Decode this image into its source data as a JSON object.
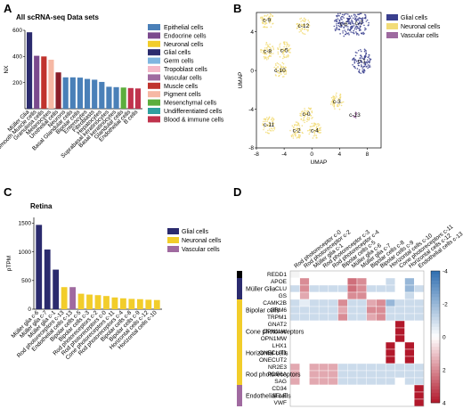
{
  "panels": {
    "a": "A",
    "b": "B",
    "c": "C",
    "d": "D"
  },
  "chart_data": [
    {
      "type": "bar",
      "title": "All scRNA-seq Data sets",
      "ylabel": "NX",
      "ylim": [
        0,
        600
      ],
      "yticks": [
        200,
        400,
        600
      ],
      "categories": [
        "Müller Glia",
        "Smooth Muscle cells",
        "Granulosa cells",
        "Melanocytes",
        "Urothelial cells",
        "Neurons",
        "Basal Glandular cells",
        "Bipolar cells",
        "Enterocytes",
        "Fibroblasts",
        "Hepatocytes",
        "Suprabasal keratinocytes",
        "Basal keratinocytes",
        "Glandular cells",
        "Endothelial cells",
        "B cells"
      ],
      "values": [
        585,
        405,
        400,
        375,
        278,
        240,
        240,
        238,
        228,
        222,
        205,
        168,
        165,
        162,
        158,
        155
      ],
      "colors": [
        "#2b2b6e",
        "#7b4a8e",
        "#c0332d",
        "#f6b8a4",
        "#8a1f2a",
        "#4a80b8",
        "#4a80b8",
        "#4a80b8",
        "#4a80b8",
        "#4a80b8",
        "#4a80b8",
        "#4a80b8",
        "#4a80b8",
        "#5cae3d",
        "#c0334d",
        "#c0334d"
      ],
      "legend": [
        {
          "label": "Epithelial cells",
          "color": "#4a80b8"
        },
        {
          "label": "Endocrine cells",
          "color": "#7b4a8e"
        },
        {
          "label": "Neuronal cells",
          "color": "#f2cd2a"
        },
        {
          "label": "Glial cells",
          "color": "#2b2b6e"
        },
        {
          "label": "Germ cells",
          "color": "#7fb6e0"
        },
        {
          "label": "Tropoblast cells",
          "color": "#f4b8c8"
        },
        {
          "label": "Vascular cells",
          "color": "#a06aa0"
        },
        {
          "label": "Muscle cells",
          "color": "#c0332d"
        },
        {
          "label": "Pigment cells",
          "color": "#f6b8a4"
        },
        {
          "label": "Mesenchymal cells",
          "color": "#5cae3d"
        },
        {
          "label": "Undifferentiated cells",
          "color": "#2fa0a0"
        },
        {
          "label": "Blood & immune cells",
          "color": "#c0334d"
        }
      ]
    },
    {
      "type": "scatter",
      "xlabel": "UMAP",
      "ylabel": "UMAP",
      "xticks": [
        -8,
        -4,
        0,
        4,
        8
      ],
      "yticks": [
        -8,
        -4,
        0,
        4
      ],
      "legend": [
        {
          "label": "Glial cells",
          "color": "#3a3f8e"
        },
        {
          "label": "Neuronal cells",
          "color": "#f2dc78"
        },
        {
          "label": "Vascular cells",
          "color": "#9e6aa0"
        }
      ],
      "clusters": [
        {
          "label": "c-9",
          "x": -6.5,
          "y": 5.2,
          "group": 1
        },
        {
          "label": "c-12",
          "x": -1.2,
          "y": 4.6,
          "group": 1
        },
        {
          "label": "c-6",
          "x": 4.6,
          "y": 4.8,
          "group": 0
        },
        {
          "label": "c-7",
          "x": 6.8,
          "y": 4.9,
          "group": 0
        },
        {
          "label": "c-8",
          "x": -6.4,
          "y": 2.0,
          "group": 1
        },
        {
          "label": "c-5",
          "x": -4.0,
          "y": 2.1,
          "group": 1
        },
        {
          "label": "c-1",
          "x": 7.2,
          "y": 1.0,
          "group": 0
        },
        {
          "label": "c-10",
          "x": -4.6,
          "y": 0.0,
          "group": 1
        },
        {
          "label": "c-3",
          "x": 3.6,
          "y": -3.2,
          "group": 1
        },
        {
          "label": "c-0",
          "x": -0.8,
          "y": -4.5,
          "group": 1
        },
        {
          "label": "c-13",
          "x": 6.2,
          "y": -4.6,
          "group": 2
        },
        {
          "label": "c-11",
          "x": -6.2,
          "y": -5.6,
          "group": 1
        },
        {
          "label": "c-2",
          "x": -2.2,
          "y": -6.2,
          "group": 1
        },
        {
          "label": "c-4",
          "x": 0.4,
          "y": -6.2,
          "group": 1
        }
      ]
    },
    {
      "type": "bar",
      "title": "Retina",
      "ylabel": "pTPM",
      "ylim": [
        0,
        1600
      ],
      "yticks": [
        0,
        500,
        1000,
        1500
      ],
      "categories": [
        "Müller glia c-6",
        "Müller glia c-7",
        "Müller glia c-1",
        "Rod photoreceptors c-13",
        "Endothelial cells c-13",
        "Bipolar cells c-5",
        "Bipolar cells c-3",
        "Rod photoreceptors c-2",
        "Rod photoreceptors c-0",
        "Cone photoreceptors c-11",
        "Rod photoreceptors c-4",
        "Bipolar cells c-8",
        "Bipolar cells c-9",
        "Horizontal cells c-12",
        "Horizontal cells c-10"
      ],
      "values": [
        1470,
        1040,
        690,
        385,
        385,
        270,
        255,
        245,
        230,
        205,
        190,
        180,
        175,
        165,
        160
      ],
      "groups": [
        0,
        0,
        0,
        1,
        2,
        1,
        1,
        1,
        1,
        1,
        1,
        1,
        1,
        1,
        1
      ],
      "legend": [
        {
          "label": "Glial cells",
          "color": "#2b2b6e"
        },
        {
          "label": "Neuronal cells",
          "color": "#f2cd2a"
        },
        {
          "label": "Vascular cells",
          "color": "#a06aa0"
        }
      ]
    },
    {
      "type": "heatmap",
      "columns": [
        "Rod photoreceptor c-0",
        "Rod photoreceptor c-2",
        "Müller glia c-1",
        "Rod photoreceptor c-3",
        "Rod photoreceptor c-4",
        "Bipolar cells c-5",
        "Müller glia c-6",
        "Müller glia c-7",
        "Bipolar cells c-8",
        "Bipolar cells c-9",
        "Horizontal cells c-10",
        "Cone photoreceptors c-11",
        "Horizontal cells c-12",
        "Endothelial cells c-13"
      ],
      "rows": [
        "REDD1",
        "APOE",
        "CLU",
        "GS",
        "CAMK2B",
        "GRM6",
        "TRPM1",
        "GNAT2",
        "OPN1LW",
        "OPN1MW",
        "LHX1",
        "ONECUT1",
        "ONECUT2",
        "NR2E3",
        "PDE6A",
        "SAG",
        "CD34",
        "SELE",
        "VWF"
      ],
      "groups": [
        {
          "label": "Müller Glia",
          "rows": [
            1,
            3
          ],
          "color": "#2b2b6e"
        },
        {
          "label": "Bipolar cells",
          "rows": [
            4,
            6
          ],
          "color": "#f2cd2a"
        },
        {
          "label": "Cone photoreceptors",
          "rows": [
            7,
            9
          ],
          "color": "#f2cd2a"
        },
        {
          "label": "Horizontal cells",
          "rows": [
            10,
            12
          ],
          "color": "#f2cd2a"
        },
        {
          "label": "Rod photoreceptors",
          "rows": [
            13,
            15
          ],
          "color": "#f2cd2a"
        },
        {
          "label": "Endothelial cells",
          "rows": [
            16,
            18
          ],
          "color": "#a06aa0"
        }
      ],
      "values": [
        [
          0,
          0,
          0,
          0,
          0,
          0,
          0,
          0,
          0,
          0,
          0,
          0,
          0,
          0
        ],
        [
          0,
          2,
          0,
          0,
          0,
          0,
          2.5,
          2,
          0,
          0,
          -1,
          0,
          -2,
          0
        ],
        [
          -1,
          2,
          -1,
          -1,
          -1,
          -1,
          2.5,
          2,
          -1,
          -1,
          -1,
          0,
          -2,
          -1
        ],
        [
          0,
          1.5,
          0,
          0,
          0,
          0,
          2,
          2,
          0,
          0,
          0,
          0,
          -1,
          0
        ],
        [
          -1,
          -0.5,
          -1,
          -1,
          -1,
          2,
          -1,
          -1,
          1.5,
          2,
          -2,
          -1,
          -1,
          -1
        ],
        [
          -1,
          -1,
          -1,
          -1,
          -1,
          1.5,
          -1,
          -1,
          2,
          2,
          -1,
          -1,
          -1,
          -1
        ],
        [
          -1,
          -1,
          -1,
          -1,
          -1,
          2,
          -1,
          -1,
          1.5,
          2,
          -1,
          -1,
          -1,
          -1
        ],
        [
          0,
          0,
          0,
          0,
          0,
          0,
          0,
          0,
          0,
          0,
          0,
          4,
          0,
          0
        ],
        [
          0,
          0,
          0,
          0,
          0,
          0,
          0,
          0,
          0,
          0,
          0,
          4,
          0,
          0
        ],
        [
          0,
          0,
          0,
          0,
          0,
          0,
          0,
          0,
          0,
          0,
          0,
          4,
          0,
          0
        ],
        [
          0,
          0,
          0,
          0,
          0,
          0,
          0,
          0,
          0,
          0,
          4,
          0,
          4,
          0
        ],
        [
          0,
          0,
          0,
          0,
          0,
          0,
          0,
          0,
          0,
          0,
          4,
          0,
          4,
          0
        ],
        [
          0,
          0,
          0,
          0,
          0,
          0,
          0,
          0,
          0,
          0,
          4,
          0,
          4,
          0
        ],
        [
          1.5,
          0,
          1.5,
          1.5,
          1.5,
          -1,
          -1,
          -1,
          -1,
          -1,
          -1,
          -1,
          -1,
          -1
        ],
        [
          1.5,
          0,
          1.5,
          1.5,
          1.5,
          -1,
          -1,
          -1,
          -1,
          -1,
          -1,
          -1,
          -1,
          -1
        ],
        [
          1.5,
          0,
          1.5,
          1.5,
          1.5,
          -1,
          -1,
          -1,
          -1,
          -1,
          -1,
          0,
          -1,
          -1
        ],
        [
          0,
          0,
          0,
          0,
          0,
          0,
          0,
          0,
          0,
          0,
          0,
          0,
          0,
          4
        ],
        [
          0,
          0,
          0,
          0,
          0,
          0,
          0,
          0,
          0,
          0,
          0,
          0,
          0,
          4
        ],
        [
          0,
          0,
          0,
          0,
          0,
          0,
          0,
          0,
          0,
          0,
          0,
          0,
          0,
          4
        ]
      ],
      "colorbar_ticks": [
        -4,
        -2,
        0,
        2,
        4
      ],
      "colorbar_colors": [
        "#2f6eb0",
        "#ffffff",
        "#b2182b"
      ],
      "redd1_color": "#000000"
    }
  ]
}
